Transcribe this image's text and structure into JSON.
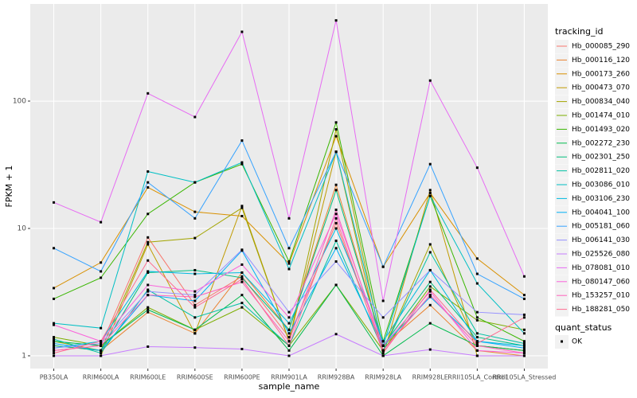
{
  "chart_data": {
    "type": "line",
    "y_label": "FPKM + 1",
    "x_label": "sample_name",
    "log_y": true,
    "grid": true,
    "point_color": "#000000",
    "legend_title": "tracking_id",
    "legend2_title": "quant_status",
    "legend2_items": [
      "OK"
    ],
    "categories": [
      "PB350LA",
      "RRIM600LA",
      "RRIM600LE",
      "RRIM600SE",
      "RRIM600PE",
      "RRIM901LA",
      "RRIM928BA",
      "RRIM928LA",
      "RRIM928LE",
      "RRII105LA_Control",
      "RRII105LA_Stressed"
    ],
    "ylim": [
      0.794,
      579
    ],
    "yticks": [
      1,
      10,
      100
    ],
    "series": [
      {
        "name": "Hb_000085_290",
        "color": "#F8766D",
        "values": [
          1.1,
          1.2,
          8.5,
          2.5,
          4.2,
          1.4,
          11,
          1.1,
          3,
          1.2,
          1.1
        ]
      },
      {
        "name": "Hb_000116_120",
        "color": "#EA8331",
        "values": [
          1.2,
          1.1,
          2.2,
          1.5,
          4.5,
          1.6,
          22,
          1.2,
          2.5,
          1.1,
          1.0
        ]
      },
      {
        "name": "Hb_000173_260",
        "color": "#D89000",
        "values": [
          3.4,
          5.4,
          21,
          13.5,
          12.5,
          5.3,
          53,
          5,
          19,
          5.8,
          3.0
        ]
      },
      {
        "name": "Hb_000473_070",
        "color": "#C09B00",
        "values": [
          1.0,
          1.0,
          7.5,
          1.5,
          15,
          1.3,
          40,
          1.0,
          20,
          1.0,
          1.0
        ]
      },
      {
        "name": "Hb_000834_040",
        "color": "#A3A500",
        "values": [
          1.3,
          1.1,
          7.8,
          8.4,
          14.5,
          1.3,
          60,
          1.1,
          7.5,
          1.2,
          1.1
        ]
      },
      {
        "name": "Hb_001474_010",
        "color": "#7CAE00",
        "values": [
          1.4,
          1.2,
          2.4,
          1.6,
          2.4,
          1.2,
          3.6,
          1.1,
          3.5,
          1.9,
          1.6
        ]
      },
      {
        "name": "Hb_001493_020",
        "color": "#39B600",
        "values": [
          2.8,
          4.1,
          13,
          23,
          32,
          5.5,
          68,
          1.3,
          18,
          2.0,
          1.3
        ]
      },
      {
        "name": "Hb_002272_230",
        "color": "#00BB4E",
        "values": [
          1.3,
          1.2,
          2.3,
          1.6,
          3.0,
          1.1,
          3.6,
          1.0,
          1.8,
          1.2,
          1.1
        ]
      },
      {
        "name": "Hb_002301_250",
        "color": "#00BF7D",
        "values": [
          1.2,
          1.1,
          4.5,
          4.7,
          4.1,
          1.6,
          20,
          1.2,
          3.8,
          1.4,
          1.2
        ]
      },
      {
        "name": "Hb_002811_020",
        "color": "#00C1A3",
        "values": [
          1.35,
          1.05,
          3.3,
          2.0,
          2.6,
          1.2,
          8,
          1.1,
          6.5,
          1.5,
          1.25
        ]
      },
      {
        "name": "Hb_003086_010",
        "color": "#00BFC4",
        "values": [
          1.8,
          1.65,
          28,
          23,
          33,
          4.8,
          40,
          1.2,
          18,
          3.7,
          1.5
        ]
      },
      {
        "name": "Hb_003106_230",
        "color": "#00BAE0",
        "values": [
          1.15,
          1.3,
          4.6,
          4.4,
          4.5,
          1.8,
          10,
          1.3,
          4.7,
          1.3,
          1.2
        ]
      },
      {
        "name": "Hb_004041_100",
        "color": "#00B0F6",
        "values": [
          1.25,
          1.1,
          3.0,
          2.7,
          6.7,
          1.5,
          7,
          1.2,
          2.9,
          1.3,
          1.15
        ]
      },
      {
        "name": "Hb_005181_060",
        "color": "#35A2FF",
        "values": [
          7,
          4.6,
          23,
          12,
          49,
          7,
          40,
          5,
          32,
          4.4,
          2.8
        ]
      },
      {
        "name": "Hb_006141_030",
        "color": "#9590FF",
        "values": [
          1.15,
          1.25,
          3.2,
          3.0,
          6.8,
          2.2,
          5.5,
          2.0,
          4.7,
          2.2,
          2.1
        ]
      },
      {
        "name": "Hb_025526_080",
        "color": "#C77CFF",
        "values": [
          1.0,
          1.0,
          1.18,
          1.16,
          1.13,
          1.0,
          1.48,
          1.0,
          1.12,
          1.0,
          1.0
        ]
      },
      {
        "name": "Hb_078081_010",
        "color": "#E76BF3",
        "values": [
          16,
          11.2,
          115,
          75,
          350,
          12,
          430,
          2.7,
          145,
          30,
          4.2
        ]
      },
      {
        "name": "Hb_080147_060",
        "color": "#FA62DB",
        "values": [
          1.75,
          1.3,
          3.6,
          3.2,
          5.2,
          2.0,
          13,
          1.2,
          3.2,
          1.1,
          1.05
        ]
      },
      {
        "name": "Hb_153257_010",
        "color": "#FF62BC",
        "values": [
          1.1,
          1.2,
          3.0,
          2.9,
          3.8,
          1.3,
          14,
          1.1,
          3.0,
          1.2,
          1.05
        ]
      },
      {
        "name": "Hb_188281_050",
        "color": "#FF6C91",
        "values": [
          1.05,
          1.3,
          5.6,
          2.4,
          4.0,
          1.2,
          12,
          1.05,
          3.3,
          1.25,
          2.0
        ]
      }
    ]
  }
}
